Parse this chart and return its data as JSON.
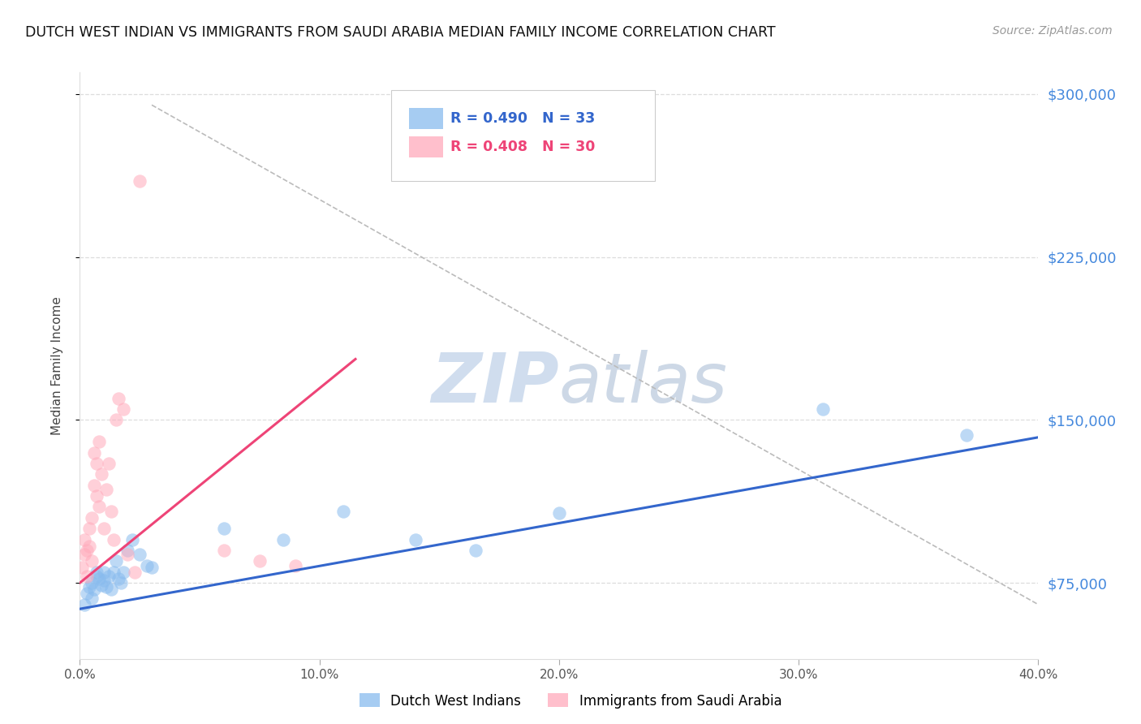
{
  "title": "DUTCH WEST INDIAN VS IMMIGRANTS FROM SAUDI ARABIA MEDIAN FAMILY INCOME CORRELATION CHART",
  "source": "Source: ZipAtlas.com",
  "ylabel": "Median Family Income",
  "xlim": [
    0.0,
    0.4
  ],
  "ylim": [
    40000,
    310000
  ],
  "xtick_labels": [
    "0.0%",
    "10.0%",
    "20.0%",
    "30.0%",
    "40.0%"
  ],
  "xtick_values": [
    0.0,
    0.1,
    0.2,
    0.3,
    0.4
  ],
  "ytick_values": [
    75000,
    150000,
    225000,
    300000
  ],
  "ytick_labels": [
    "$75,000",
    "$150,000",
    "$225,000",
    "$300,000"
  ],
  "blue_color": "#88BBEE",
  "pink_color": "#FFAABB",
  "blue_line_color": "#3366CC",
  "pink_line_color": "#EE4477",
  "right_label_color": "#4488DD",
  "blue_R": 0.49,
  "blue_N": 33,
  "pink_R": 0.408,
  "pink_N": 30,
  "blue_legend": "Dutch West Indians",
  "pink_legend": "Immigrants from Saudi Arabia",
  "watermark_zip": "ZIP",
  "watermark_atlas": "atlas",
  "blue_scatter_x": [
    0.002,
    0.003,
    0.004,
    0.005,
    0.005,
    0.006,
    0.007,
    0.007,
    0.008,
    0.009,
    0.01,
    0.01,
    0.011,
    0.012,
    0.013,
    0.014,
    0.015,
    0.016,
    0.017,
    0.018,
    0.02,
    0.022,
    0.025,
    0.028,
    0.03,
    0.06,
    0.085,
    0.11,
    0.14,
    0.165,
    0.2,
    0.31,
    0.37
  ],
  "blue_scatter_y": [
    65000,
    70000,
    73000,
    68000,
    75000,
    72000,
    78000,
    80000,
    77000,
    74000,
    80000,
    76000,
    73000,
    78000,
    72000,
    80000,
    85000,
    77000,
    75000,
    80000,
    90000,
    95000,
    88000,
    83000,
    82000,
    100000,
    95000,
    108000,
    95000,
    90000,
    107000,
    155000,
    143000
  ],
  "pink_scatter_x": [
    0.001,
    0.002,
    0.002,
    0.003,
    0.003,
    0.004,
    0.004,
    0.005,
    0.005,
    0.006,
    0.006,
    0.007,
    0.007,
    0.008,
    0.008,
    0.009,
    0.01,
    0.011,
    0.012,
    0.013,
    0.014,
    0.015,
    0.016,
    0.018,
    0.02,
    0.023,
    0.025,
    0.06,
    0.075,
    0.09
  ],
  "pink_scatter_y": [
    82000,
    88000,
    95000,
    90000,
    78000,
    100000,
    92000,
    85000,
    105000,
    120000,
    135000,
    130000,
    115000,
    140000,
    110000,
    125000,
    100000,
    118000,
    130000,
    108000,
    95000,
    150000,
    160000,
    155000,
    88000,
    80000,
    260000,
    90000,
    85000,
    83000
  ],
  "blue_trend_x": [
    0.0,
    0.4
  ],
  "blue_trend_y": [
    63000,
    142000
  ],
  "pink_trend_x": [
    0.0,
    0.115
  ],
  "pink_trend_y": [
    75000,
    178000
  ],
  "ref_line_x": [
    0.03,
    0.4
  ],
  "ref_line_y": [
    295000,
    65000
  ]
}
